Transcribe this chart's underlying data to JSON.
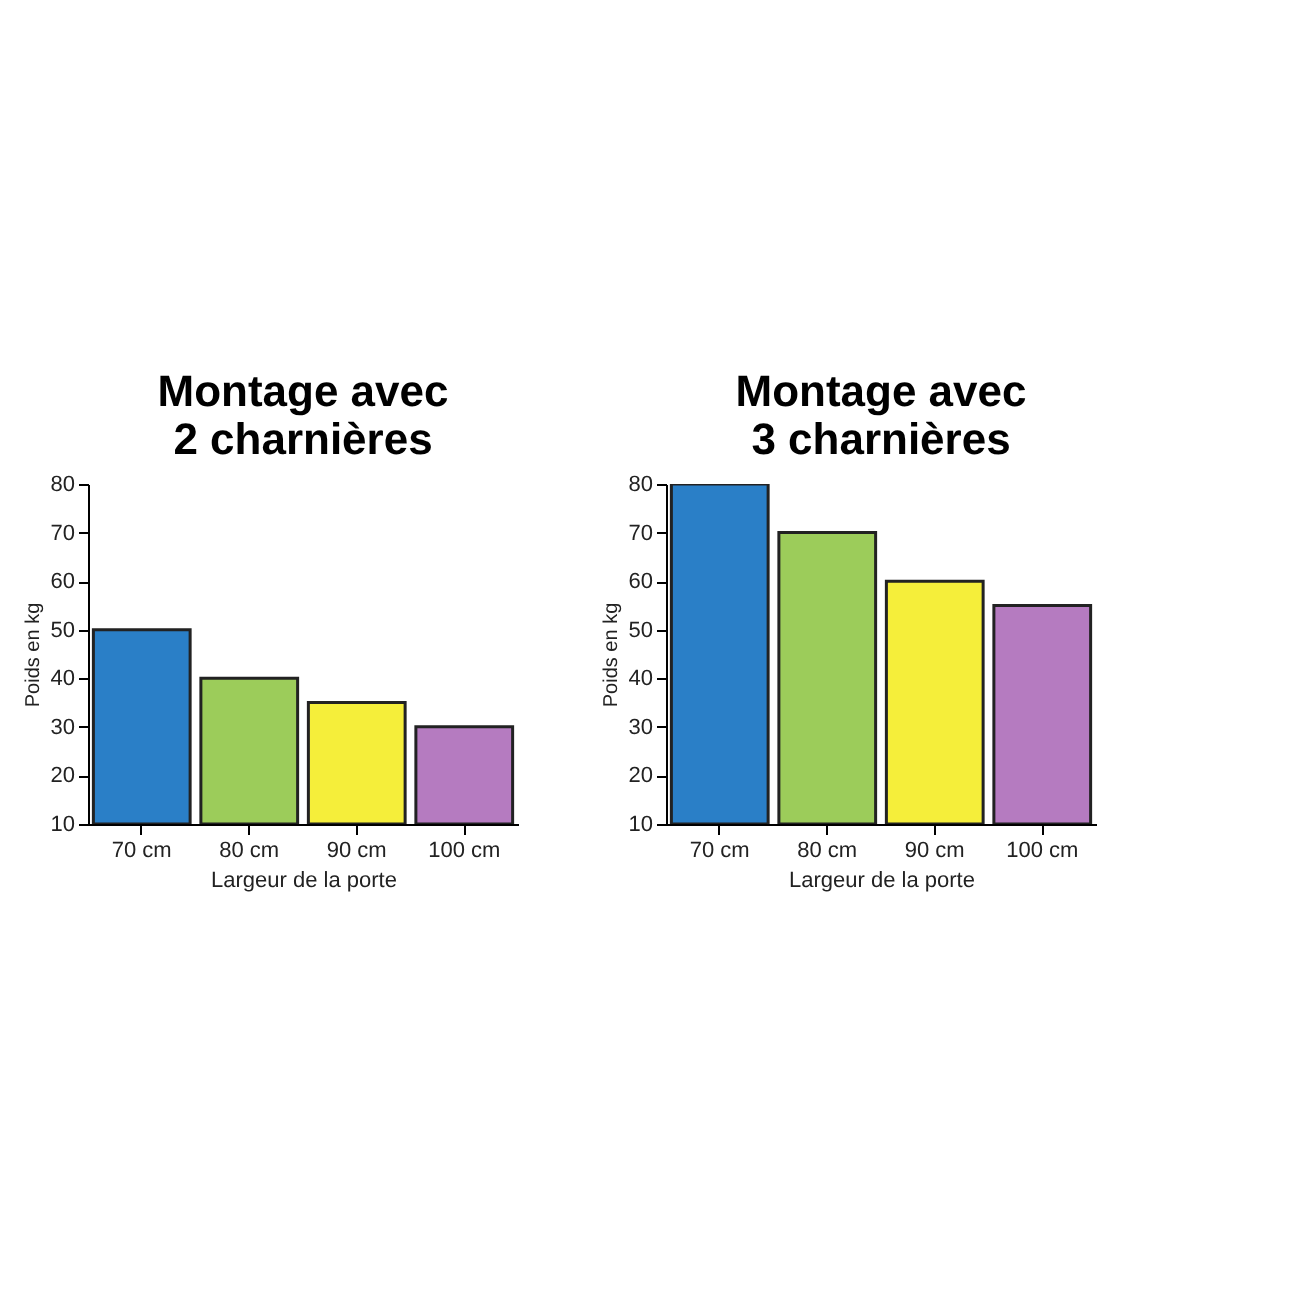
{
  "chart_data": [
    {
      "type": "bar",
      "title": "Montage avec\n2 charnières",
      "xlabel": "Largeur de la porte",
      "ylabel": "Poids en kg",
      "categories": [
        "70 cm",
        "80 cm",
        "90 cm",
        "100 cm"
      ],
      "values": [
        50,
        40,
        35,
        30
      ],
      "colors": [
        "#2a7fc7",
        "#9ccc5a",
        "#f5ee3a",
        "#b57bc0"
      ],
      "ylim": [
        10,
        80
      ],
      "yticks": [
        10,
        20,
        30,
        40,
        50,
        60,
        70,
        80
      ],
      "grid": false,
      "legend": false
    },
    {
      "type": "bar",
      "title": "Montage avec\n3 charnières",
      "xlabel": "Largeur de la porte",
      "ylabel": "Poids en kg",
      "categories": [
        "70 cm",
        "80 cm",
        "90 cm",
        "100 cm"
      ],
      "values": [
        80,
        70,
        60,
        55
      ],
      "colors": [
        "#2a7fc7",
        "#9ccc5a",
        "#f5ee3a",
        "#b57bc0"
      ],
      "ylim": [
        10,
        80
      ],
      "yticks": [
        10,
        20,
        30,
        40,
        50,
        60,
        70,
        80
      ],
      "grid": false,
      "legend": false
    }
  ]
}
